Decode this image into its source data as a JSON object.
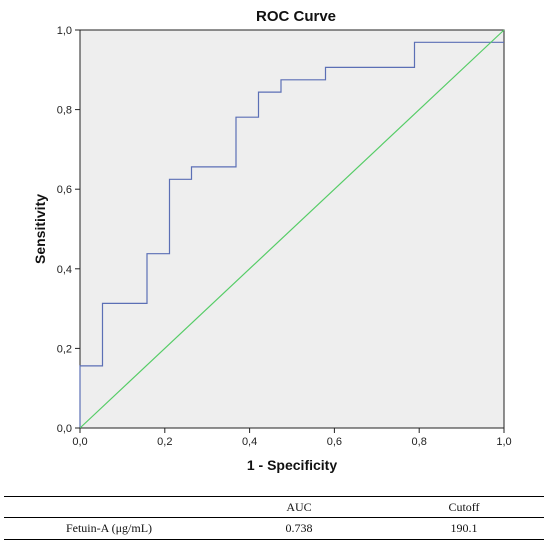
{
  "chart_data": {
    "type": "line",
    "title": "ROC Curve",
    "xlabel": "1 - Specificity",
    "ylabel": "Sensitivity",
    "xlim": [
      0,
      1
    ],
    "ylim": [
      0,
      1
    ],
    "x_ticks": [
      "0,0",
      "0,2",
      "0,4",
      "0,6",
      "0,8",
      "1,0"
    ],
    "y_ticks": [
      "0,0",
      "0,2",
      "0,4",
      "0,6",
      "0,8",
      "1,0"
    ],
    "grid": false,
    "background": "#eeeeee",
    "series": [
      {
        "color": "#5b6fb5",
        "x": [
          0,
          0,
          0.053,
          0.053,
          0.158,
          0.158,
          0.211,
          0.211,
          0.263,
          0.263,
          0.368,
          0.368,
          0.421,
          0.421,
          0.474,
          0.474,
          0.579,
          0.579,
          0.789,
          0.789,
          1.0
        ],
        "y": [
          0,
          0.156,
          0.156,
          0.313,
          0.313,
          0.438,
          0.438,
          0.625,
          0.625,
          0.656,
          0.656,
          0.781,
          0.781,
          0.844,
          0.844,
          0.875,
          0.875,
          0.906,
          0.906,
          0.969,
          0.969
        ]
      },
      {
        "color": "#55cc66",
        "x": [
          0,
          1
        ],
        "y": [
          0,
          1
        ]
      }
    ]
  },
  "table": {
    "headers": [
      "",
      "AUC",
      "Cutoff"
    ],
    "rows": [
      [
        "Fetuin-A (μg/mL)",
        "0.738",
        "190.1"
      ]
    ]
  }
}
